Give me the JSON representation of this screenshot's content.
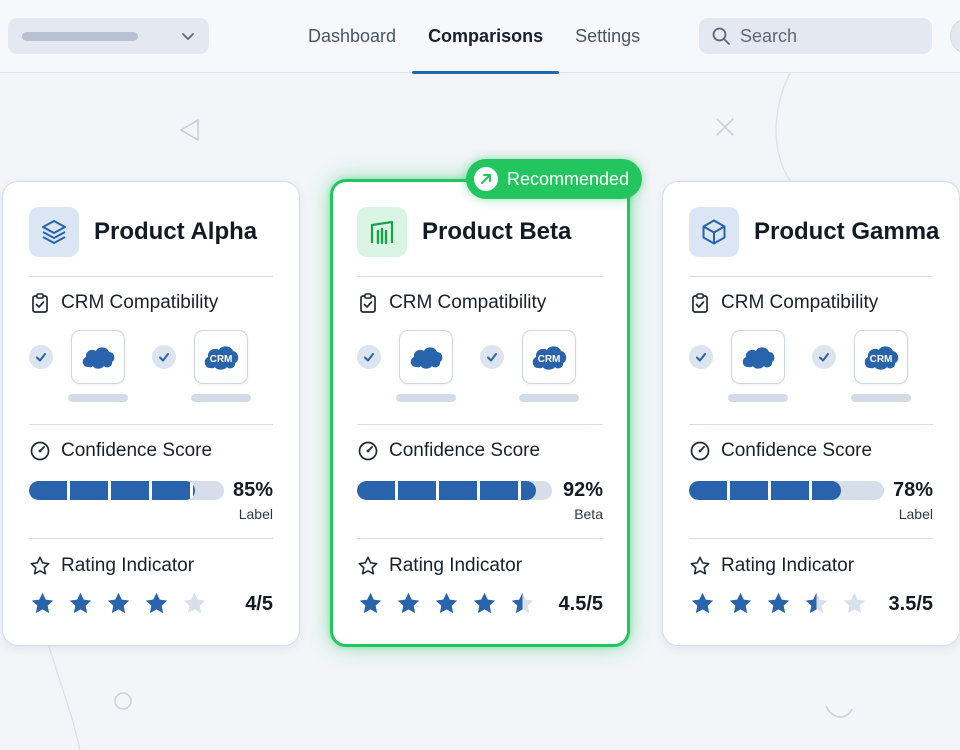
{
  "nav": {
    "tabs": [
      {
        "label": "Dashboard",
        "active": false
      },
      {
        "label": "Comparisons",
        "active": true
      },
      {
        "label": "Settings",
        "active": false
      }
    ]
  },
  "search": {
    "placeholder": "Search",
    "icon": "search-icon"
  },
  "colors": {
    "accent": "#2863ac",
    "recommended": "#22c55e",
    "star_filled": "#2863ac",
    "star_empty": "#d8e0eb"
  },
  "sections": {
    "crm": "CRM Compatibility",
    "confidence": "Confidence Score",
    "rating": "Rating Indicator"
  },
  "crm_integrations": [
    {
      "name": "salesforce-cloud",
      "icon": "cloud-logo-icon",
      "checked": true
    },
    {
      "name": "crm-cloud",
      "icon": "crm-cloud-logo-icon",
      "checked": true,
      "text": "CRM"
    }
  ],
  "badge": {
    "label": "Recommended",
    "icon": "arrow-up-right-icon"
  },
  "products": [
    {
      "name": "Product Alpha",
      "icon": "layers-icon",
      "confidence": {
        "value": 85,
        "display": "85%",
        "label": "Label"
      },
      "rating": {
        "value": 4,
        "max": 5,
        "display": "4/5"
      }
    },
    {
      "name": "Product Beta",
      "icon": "bar-chart-icon",
      "recommended": true,
      "confidence": {
        "value": 92,
        "display": "92%",
        "label": "Beta"
      },
      "rating": {
        "value": 4.5,
        "max": 5,
        "display": "4.5/5"
      }
    },
    {
      "name": "Product Gamma",
      "icon": "cube-icon",
      "confidence": {
        "value": 78,
        "display": "78%",
        "label": "Label"
      },
      "rating": {
        "value": 3.5,
        "max": 5,
        "display": "3.5/5"
      }
    }
  ]
}
